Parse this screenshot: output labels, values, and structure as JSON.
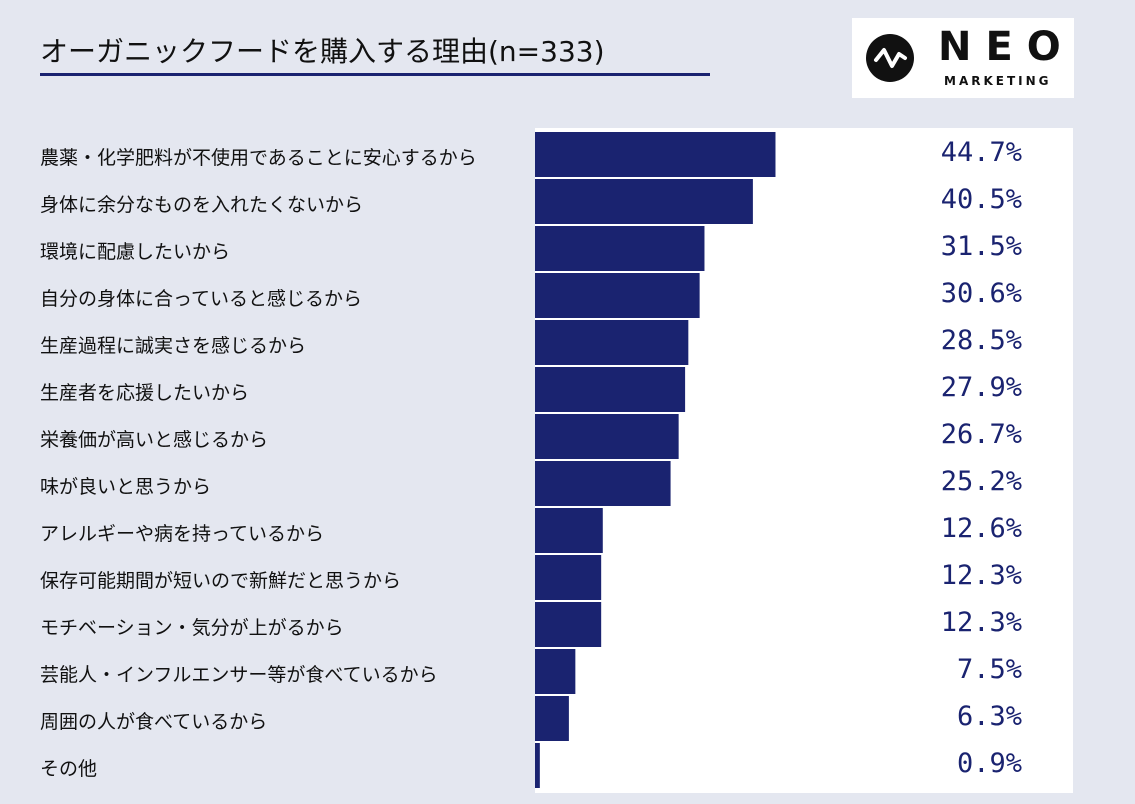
{
  "title": "オーガニックフードを購入する理由(n=333)",
  "logo": {
    "word": "NEO",
    "sub": "MARKETING",
    "icon": "pulse-line-icon"
  },
  "colors": {
    "bar": "#1a2370",
    "value_text": "#1a2370",
    "background": "#e4e7f0",
    "panel": "#ffffff"
  },
  "chart_data": {
    "type": "bar",
    "orientation": "horizontal",
    "title": "オーガニックフードを購入する理由(n=333)",
    "categories": [
      "農薬・化学肥料が不使用であることに安心するから",
      "身体に余分なものを入れたくないから",
      "環境に配慮したいから",
      "自分の身体に合っていると感じるから",
      "生産過程に誠実さを感じるから",
      "生産者を応援したいから",
      "栄養価が高いと感じるから",
      "味が良いと思うから",
      "アレルギーや病を持っているから",
      "保存可能期間が短いので新鮮だと思うから",
      "モチベーション・気分が上がるから",
      "芸能人・インフルエンサー等が食べているから",
      "周囲の人が食べているから",
      "その他"
    ],
    "values": [
      44.7,
      40.5,
      31.5,
      30.6,
      28.5,
      27.9,
      26.7,
      25.2,
      12.6,
      12.3,
      12.3,
      7.5,
      6.3,
      0.9
    ],
    "value_labels": [
      "44.7%",
      "40.5%",
      "31.5%",
      "30.6%",
      "28.5%",
      "27.9%",
      "26.7%",
      "25.2%",
      "12.6%",
      "12.3%",
      "12.3%",
      "7.5%",
      "6.3%",
      "0.9%"
    ],
    "unit": "%",
    "xlim": [
      0,
      100
    ],
    "grid": false,
    "legend": "none"
  }
}
